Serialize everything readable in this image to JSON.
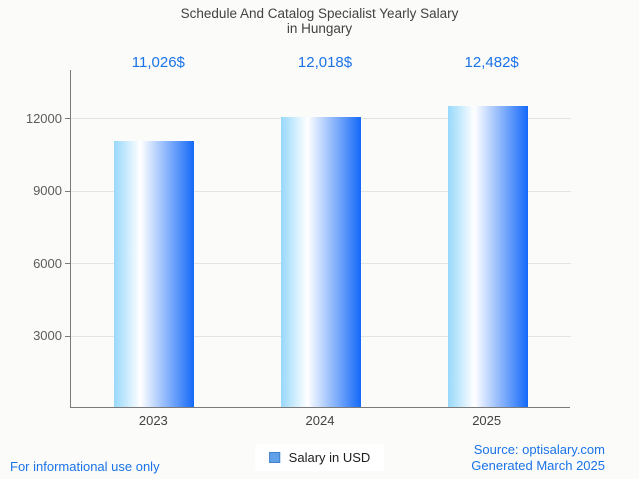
{
  "chart_data": {
    "type": "bar",
    "title": "Schedule And Catalog Specialist Yearly Salary",
    "subtitle": "in Hungary",
    "categories": [
      "2023",
      "2024",
      "2025"
    ],
    "values": [
      11026,
      12018,
      12482
    ],
    "value_labels": [
      "11,026$",
      "12,018$",
      "12,482$"
    ],
    "series": [
      {
        "name": "Salary in USD",
        "values": [
          11026,
          12018,
          12482
        ]
      }
    ],
    "legend_label": "Salary in USD",
    "xlabel": "",
    "ylabel": "",
    "ylim": [
      0,
      14000
    ],
    "yticks": [
      3000,
      6000,
      9000,
      12000
    ],
    "grid": true,
    "legend_position": "bottom"
  },
  "footer": {
    "disclaimer": "For informational use only",
    "source": "Source: optisalary.com",
    "generated": "Generated March 2025"
  },
  "colors": {
    "accent_blue": "#1a73e8",
    "title_text": "#424242",
    "axis_line": "#7a7a7a",
    "gridline": "#e4e4e2",
    "background": "#fbfbfa",
    "bar_gradient_left": "#97d8fb",
    "bar_gradient_mid": "#ffffff",
    "bar_gradient_right": "#1469f8",
    "legend_marker_fill": "#60a1e8",
    "legend_marker_border": "#4181cb"
  }
}
